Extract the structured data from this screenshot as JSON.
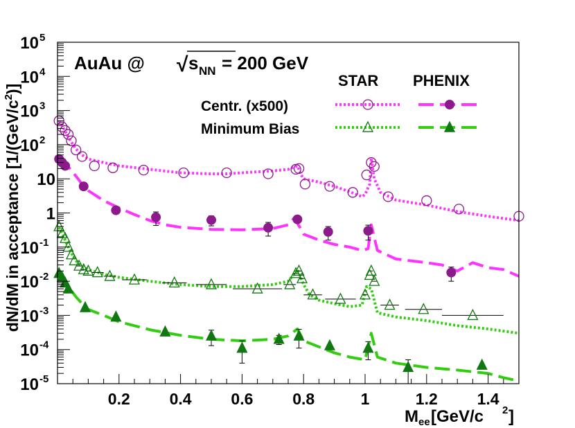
{
  "chart_data": {
    "type": "scatter",
    "title": "AuAu @ √s_NN = 200 GeV",
    "title_parts": {
      "system": "AuAu @",
      "sqrt": "√",
      "s": "s",
      "sub": "NN",
      "energy": "= 200 GeV"
    },
    "xlabel": {
      "main": "M",
      "sub": "ee",
      "unit": " [GeV/c",
      "sup": "2",
      "close": "]"
    },
    "ylabel": "dN/dM in acceptance [1/(GeV/c²)]",
    "ylabel_parts": {
      "main": "dN/dM in acceptance [1/(GeV/c",
      "sup": "2",
      "close": ")]"
    },
    "xlim": [
      0.0,
      1.5
    ],
    "ylim": [
      1e-05,
      100000.0
    ],
    "yscale": "log",
    "x_ticks": [
      {
        "v": 0.2,
        "label": "0.2"
      },
      {
        "v": 0.4,
        "label": "0.4"
      },
      {
        "v": 0.6,
        "label": "0.6"
      },
      {
        "v": 0.8,
        "label": "0.8"
      },
      {
        "v": 1.0,
        "label": "1"
      },
      {
        "v": 1.2,
        "label": "1.2"
      },
      {
        "v": 1.4,
        "label": "1.4"
      }
    ],
    "y_ticks": [
      {
        "exp": -5,
        "text": "10",
        "sup": "-5"
      },
      {
        "exp": -4,
        "text": "10",
        "sup": "-4"
      },
      {
        "exp": -3,
        "text": "10",
        "sup": "-3"
      },
      {
        "exp": -2,
        "text": "10",
        "sup": "-2"
      },
      {
        "exp": -1,
        "text": "10",
        "sup": "-1"
      },
      {
        "exp": 0,
        "text": "1",
        "sup": ""
      },
      {
        "exp": 1,
        "text": "10",
        "sup": ""
      },
      {
        "exp": 2,
        "text": "10",
        "sup": "2"
      },
      {
        "exp": 3,
        "text": "10",
        "sup": "3"
      },
      {
        "exp": 4,
        "text": "10",
        "sup": "4"
      },
      {
        "exp": 5,
        "text": "10",
        "sup": "5"
      }
    ],
    "legend": {
      "position": "top-right",
      "headers": [
        "STAR",
        "PHENIX"
      ],
      "rows": [
        {
          "label": "Centr. (x500)",
          "star_marker": "open-circle",
          "phenix_marker": "filled-circle",
          "color_key": "centr"
        },
        {
          "label": "Minimum Bias",
          "star_marker": "open-triangle",
          "phenix_marker": "filled-triangle",
          "color_key": "mb"
        }
      ]
    },
    "colors": {
      "centr_line": "#ff33ff",
      "centr_marker": "#8b1a8b",
      "mb_line": "#33cc11",
      "mb_marker": "#117711",
      "text": "#000000"
    },
    "series": [
      {
        "name": "STAR Centr. (x500) data",
        "kind": "points",
        "marker": "open-circle",
        "color_key": "centr_marker",
        "points": [
          [
            0.005,
            500
          ],
          [
            0.015,
            330
          ],
          [
            0.025,
            260
          ],
          [
            0.035,
            200
          ],
          [
            0.045,
            130
          ],
          [
            0.06,
            70
          ],
          [
            0.08,
            45
          ],
          [
            0.12,
            24
          ],
          [
            0.18,
            21
          ],
          [
            0.28,
            18
          ],
          [
            0.41,
            15
          ],
          [
            0.55,
            15
          ],
          [
            0.685,
            14
          ],
          [
            0.775,
            19
          ],
          [
            0.785,
            20
          ],
          [
            0.805,
            7
          ],
          [
            0.885,
            6
          ],
          [
            0.96,
            4
          ],
          [
            1.005,
            13
          ],
          [
            1.02,
            30
          ],
          [
            1.03,
            23
          ],
          [
            1.075,
            3
          ],
          [
            1.2,
            2.3
          ],
          [
            1.305,
            1.3
          ],
          [
            1.5,
            0.8
          ]
        ]
      },
      {
        "name": "STAR Centr. (x500) cocktail",
        "kind": "line",
        "style": "dotted",
        "color_key": "centr_line",
        "points": [
          [
            0.005,
            500
          ],
          [
            0.02,
            300
          ],
          [
            0.04,
            140
          ],
          [
            0.06,
            75
          ],
          [
            0.08,
            50
          ],
          [
            0.1,
            38
          ],
          [
            0.15,
            30
          ],
          [
            0.2,
            24
          ],
          [
            0.3,
            19
          ],
          [
            0.4,
            15
          ],
          [
            0.5,
            14
          ],
          [
            0.55,
            14
          ],
          [
            0.6,
            15
          ],
          [
            0.65,
            16
          ],
          [
            0.7,
            17
          ],
          [
            0.75,
            19
          ],
          [
            0.78,
            24
          ],
          [
            0.79,
            14
          ],
          [
            0.8,
            10
          ],
          [
            0.85,
            8
          ],
          [
            0.9,
            6
          ],
          [
            0.95,
            4.2
          ],
          [
            0.99,
            3
          ],
          [
            1.0,
            3.5
          ],
          [
            1.015,
            7
          ],
          [
            1.02,
            40
          ],
          [
            1.03,
            10
          ],
          [
            1.05,
            4
          ],
          [
            1.1,
            2.4
          ],
          [
            1.2,
            1.7
          ],
          [
            1.3,
            1.1
          ],
          [
            1.4,
            0.8
          ],
          [
            1.5,
            0.6
          ]
        ]
      },
      {
        "name": "PHENIX Centr. (x500) data",
        "kind": "points",
        "marker": "filled-circle",
        "color_key": "centr_marker",
        "points": [
          [
            0.005,
            38,
            0
          ],
          [
            0.015,
            30,
            0
          ],
          [
            0.025,
            24,
            0
          ],
          [
            0.085,
            6,
            0
          ],
          [
            0.19,
            1.2,
            0.25
          ],
          [
            0.32,
            0.75,
            0.32
          ],
          [
            0.5,
            0.62,
            0.2
          ],
          [
            0.685,
            0.37,
            0.16
          ],
          [
            0.78,
            0.65,
            0
          ],
          [
            0.88,
            0.28,
            0.12
          ],
          [
            1.01,
            0.3,
            0.14
          ],
          [
            1.28,
            0.018,
            0.008
          ]
        ]
      },
      {
        "name": "PHENIX Centr. (x500) cocktail",
        "kind": "line",
        "style": "dashed",
        "color_key": "centr_line",
        "points": [
          [
            0.005,
            38
          ],
          [
            0.02,
            30
          ],
          [
            0.04,
            20
          ],
          [
            0.06,
            12
          ],
          [
            0.08,
            7
          ],
          [
            0.1,
            4.5
          ],
          [
            0.15,
            2.3
          ],
          [
            0.2,
            1.4
          ],
          [
            0.25,
            0.9
          ],
          [
            0.3,
            0.6
          ],
          [
            0.35,
            0.45
          ],
          [
            0.4,
            0.38
          ],
          [
            0.5,
            0.33
          ],
          [
            0.6,
            0.32
          ],
          [
            0.7,
            0.35
          ],
          [
            0.75,
            0.45
          ],
          [
            0.77,
            0.72
          ],
          [
            0.79,
            0.35
          ],
          [
            0.8,
            0.24
          ],
          [
            0.85,
            0.16
          ],
          [
            0.9,
            0.12
          ],
          [
            0.95,
            0.1
          ],
          [
            0.99,
            0.08
          ],
          [
            1.01,
            0.09
          ],
          [
            1.02,
            0.45
          ],
          [
            1.04,
            0.08
          ],
          [
            1.1,
            0.045
          ],
          [
            1.2,
            0.035
          ],
          [
            1.25,
            0.03
          ],
          [
            1.3,
            0.02
          ],
          [
            1.35,
            0.035
          ],
          [
            1.4,
            0.025
          ],
          [
            1.45,
            0.022
          ],
          [
            1.5,
            0.014
          ]
        ]
      },
      {
        "name": "STAR Minimum Bias data",
        "kind": "points",
        "marker": "open-triangle",
        "color_key": "mb_marker",
        "points": [
          [
            0.005,
            0.4,
            0.0
          ],
          [
            0.015,
            0.25,
            0.0
          ],
          [
            0.025,
            0.18,
            0.0
          ],
          [
            0.035,
            0.1,
            0.0
          ],
          [
            0.045,
            0.06,
            0.0
          ],
          [
            0.055,
            0.04,
            0.0
          ],
          [
            0.07,
            0.028,
            0.01
          ],
          [
            0.085,
            0.022,
            0.01
          ],
          [
            0.1,
            0.02,
            0.01
          ],
          [
            0.13,
            0.018,
            0.02
          ],
          [
            0.17,
            0.014,
            0.02
          ],
          [
            0.25,
            0.011,
            0.04
          ],
          [
            0.38,
            0.009,
            0.04
          ],
          [
            0.5,
            0.008,
            0.05
          ],
          [
            0.65,
            0.006,
            0.08
          ],
          [
            0.755,
            0.008,
            0.02
          ],
          [
            0.775,
            0.017,
            0.01
          ],
          [
            0.785,
            0.02,
            0.01
          ],
          [
            0.795,
            0.012,
            0.01
          ],
          [
            0.83,
            0.004,
            0.03
          ],
          [
            0.92,
            0.003,
            0.05
          ],
          [
            1.0,
            0.004,
            0.01
          ],
          [
            1.015,
            0.015,
            0.005
          ],
          [
            1.02,
            0.02,
            0.005
          ],
          [
            1.03,
            0.01,
            0.01
          ],
          [
            1.08,
            0.002,
            0.03
          ],
          [
            1.19,
            0.0015,
            0.06
          ],
          [
            1.35,
            0.001,
            0.1
          ]
        ]
      },
      {
        "name": "STAR Minimum Bias cocktail",
        "kind": "line",
        "style": "dotted",
        "color_key": "mb_line",
        "points": [
          [
            0.005,
            0.38
          ],
          [
            0.02,
            0.2
          ],
          [
            0.04,
            0.08
          ],
          [
            0.06,
            0.04
          ],
          [
            0.08,
            0.028
          ],
          [
            0.1,
            0.022
          ],
          [
            0.15,
            0.016
          ],
          [
            0.2,
            0.013
          ],
          [
            0.3,
            0.01
          ],
          [
            0.4,
            0.008
          ],
          [
            0.5,
            0.007
          ],
          [
            0.55,
            0.007
          ],
          [
            0.6,
            0.007
          ],
          [
            0.7,
            0.008
          ],
          [
            0.75,
            0.01
          ],
          [
            0.78,
            0.022
          ],
          [
            0.8,
            0.008
          ],
          [
            0.82,
            0.004
          ],
          [
            0.85,
            0.0028
          ],
          [
            0.9,
            0.0022
          ],
          [
            0.95,
            0.0018
          ],
          [
            0.99,
            0.002
          ],
          [
            1.005,
            0.007
          ],
          [
            1.02,
            0.006
          ],
          [
            1.04,
            0.0012
          ],
          [
            1.1,
            0.0009
          ],
          [
            1.2,
            0.0007
          ],
          [
            1.3,
            0.0005
          ],
          [
            1.4,
            0.0004
          ],
          [
            1.5,
            0.0003
          ]
        ]
      },
      {
        "name": "PHENIX Minimum Bias data",
        "kind": "points",
        "marker": "filled-triangle",
        "color_key": "mb_marker",
        "points": [
          [
            0.005,
            0.017,
            0
          ],
          [
            0.015,
            0.013,
            0
          ],
          [
            0.025,
            0.009,
            0
          ],
          [
            0.035,
            0.006,
            0
          ],
          [
            0.09,
            0.0017,
            0
          ],
          [
            0.19,
            0.0009,
            0
          ],
          [
            0.35,
            0.00033,
            0
          ],
          [
            0.5,
            0.00025,
            0.00012
          ],
          [
            0.6,
            0.00011,
            7e-05
          ],
          [
            0.72,
            0.0002,
            6e-05
          ],
          [
            0.785,
            0.00025,
            0.00014
          ],
          [
            0.885,
            0.00013,
            0
          ],
          [
            1.01,
            0.00011,
            6e-05
          ],
          [
            1.14,
            3e-05,
            2e-05
          ],
          [
            1.38,
            3.5e-05,
            0
          ]
        ]
      },
      {
        "name": "PHENIX Minimum Bias cocktail",
        "kind": "line",
        "style": "dashed",
        "color_key": "mb_line",
        "points": [
          [
            0.005,
            0.017
          ],
          [
            0.02,
            0.011
          ],
          [
            0.04,
            0.006
          ],
          [
            0.06,
            0.0035
          ],
          [
            0.08,
            0.0022
          ],
          [
            0.1,
            0.0015
          ],
          [
            0.15,
            0.001
          ],
          [
            0.2,
            0.00065
          ],
          [
            0.3,
            0.00038
          ],
          [
            0.4,
            0.00026
          ],
          [
            0.5,
            0.0002
          ],
          [
            0.6,
            0.00018
          ],
          [
            0.7,
            0.0002
          ],
          [
            0.75,
            0.00025
          ],
          [
            0.78,
            0.0004
          ],
          [
            0.8,
            0.00018
          ],
          [
            0.85,
            0.00012
          ],
          [
            0.9,
            8e-05
          ],
          [
            0.95,
            6e-05
          ],
          [
            1.0,
            5e-05
          ],
          [
            1.02,
            0.0003
          ],
          [
            1.04,
            6e-05
          ],
          [
            1.1,
            4e-05
          ],
          [
            1.2,
            3e-05
          ],
          [
            1.3,
            2.5e-05
          ],
          [
            1.4,
            2e-05
          ],
          [
            1.45,
            1.5e-05
          ],
          [
            1.5,
            1.2e-05
          ]
        ]
      }
    ]
  }
}
